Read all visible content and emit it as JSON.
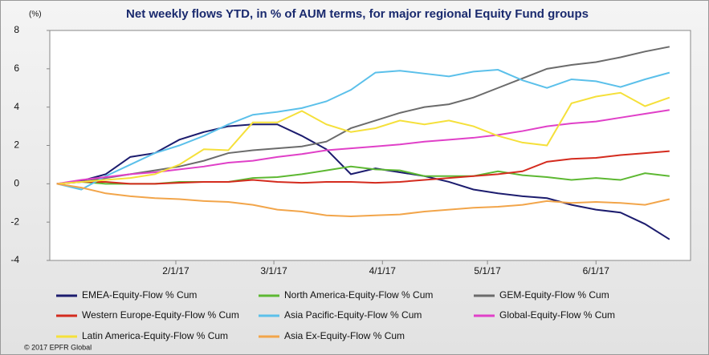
{
  "chart_data": {
    "type": "line",
    "title": "Net weekly flows YTD, in % of AUM terms, for major regional Equity Fund groups",
    "y_label": "(%)",
    "source": "© 2017 EPFR Global",
    "x": [
      -2,
      5,
      12,
      19,
      26,
      33,
      40,
      47,
      54,
      61,
      68,
      75,
      82,
      89,
      96,
      103,
      110,
      117,
      124,
      131,
      138,
      145,
      152,
      159,
      166,
      173
    ],
    "xlim": [
      -4,
      179
    ],
    "xticks": [
      {
        "value": 32,
        "label": "2/1/17"
      },
      {
        "value": 60,
        "label": "3/1/17"
      },
      {
        "value": 91,
        "label": "4/1/17"
      },
      {
        "value": 121,
        "label": "5/1/17"
      },
      {
        "value": 152,
        "label": "6/1/17"
      }
    ],
    "ylim": [
      -4,
      8
    ],
    "yticks": [
      -4,
      -2,
      0,
      2,
      4,
      6,
      8
    ],
    "legend": "bottom",
    "series": [
      {
        "name": "EMEA-Equity-Flow % Cum",
        "color": "#1c1c6e",
        "values": [
          0,
          0.15,
          0.5,
          1.4,
          1.6,
          2.3,
          2.7,
          3.0,
          3.1,
          3.1,
          2.5,
          1.8,
          0.5,
          0.8,
          0.6,
          0.4,
          0.1,
          -0.3,
          -0.5,
          -0.65,
          -0.75,
          -1.1,
          -1.35,
          -1.5,
          -2.1,
          -2.9
        ]
      },
      {
        "name": "North America-Equity-Flow % Cum",
        "color": "#5db832",
        "values": [
          0,
          0.1,
          0,
          0,
          0,
          0.1,
          0.1,
          0.1,
          0.3,
          0.35,
          0.5,
          0.7,
          0.9,
          0.75,
          0.7,
          0.4,
          0.4,
          0.4,
          0.65,
          0.45,
          0.35,
          0.2,
          0.3,
          0.2,
          0.55,
          0.4
        ]
      },
      {
        "name": "GEM-Equity-Flow % Cum",
        "color": "#6b6b6b",
        "values": [
          0,
          0.1,
          0.3,
          0.5,
          0.7,
          0.9,
          1.2,
          1.6,
          1.75,
          1.85,
          1.95,
          2.2,
          2.9,
          3.3,
          3.7,
          4.0,
          4.15,
          4.5,
          5.0,
          5.5,
          6.0,
          6.2,
          6.35,
          6.6,
          6.9,
          7.15
        ]
      },
      {
        "name": "Western Europe-Equity-Flow % Cum",
        "color": "#d42b1e",
        "values": [
          0,
          0.1,
          0.1,
          0,
          0,
          0.05,
          0.1,
          0.1,
          0.2,
          0.1,
          0.05,
          0.1,
          0.1,
          0.05,
          0.1,
          0.2,
          0.3,
          0.4,
          0.5,
          0.65,
          1.15,
          1.3,
          1.35,
          1.5,
          1.6,
          1.7
        ]
      },
      {
        "name": "Asia Pacific-Equity-Flow % Cum",
        "color": "#5bc0ea",
        "values": [
          0,
          -0.3,
          0.4,
          1.0,
          1.6,
          2.0,
          2.5,
          3.1,
          3.6,
          3.75,
          3.95,
          4.3,
          4.9,
          5.8,
          5.9,
          5.75,
          5.6,
          5.85,
          5.95,
          5.4,
          5.0,
          5.45,
          5.35,
          5.05,
          5.45,
          5.8
        ]
      },
      {
        "name": "Global-Equity-Flow % Cum",
        "color": "#e040c8",
        "values": [
          0,
          0.2,
          0.35,
          0.5,
          0.6,
          0.75,
          0.9,
          1.1,
          1.2,
          1.4,
          1.55,
          1.75,
          1.85,
          1.95,
          2.05,
          2.2,
          2.3,
          2.4,
          2.55,
          2.75,
          3.0,
          3.15,
          3.25,
          3.45,
          3.65,
          3.85
        ]
      },
      {
        "name": "Latin America-Equity-Flow % Cum",
        "color": "#f5e03a",
        "values": [
          0,
          0.1,
          0.2,
          0.3,
          0.5,
          1.0,
          1.8,
          1.75,
          3.2,
          3.2,
          3.8,
          3.1,
          2.7,
          2.9,
          3.3,
          3.1,
          3.3,
          3.0,
          2.5,
          2.15,
          2.0,
          4.2,
          4.55,
          4.75,
          4.05,
          4.5
        ]
      },
      {
        "name": "Asia Ex-Equity-Flow % Cum",
        "color": "#f2a54a",
        "values": [
          0,
          -0.2,
          -0.5,
          -0.65,
          -0.75,
          -0.8,
          -0.9,
          -0.95,
          -1.1,
          -1.35,
          -1.45,
          -1.65,
          -1.7,
          -1.65,
          -1.6,
          -1.45,
          -1.35,
          -1.25,
          -1.2,
          -1.1,
          -0.9,
          -1.0,
          -0.95,
          -1.0,
          -1.1,
          -0.8
        ]
      }
    ]
  }
}
